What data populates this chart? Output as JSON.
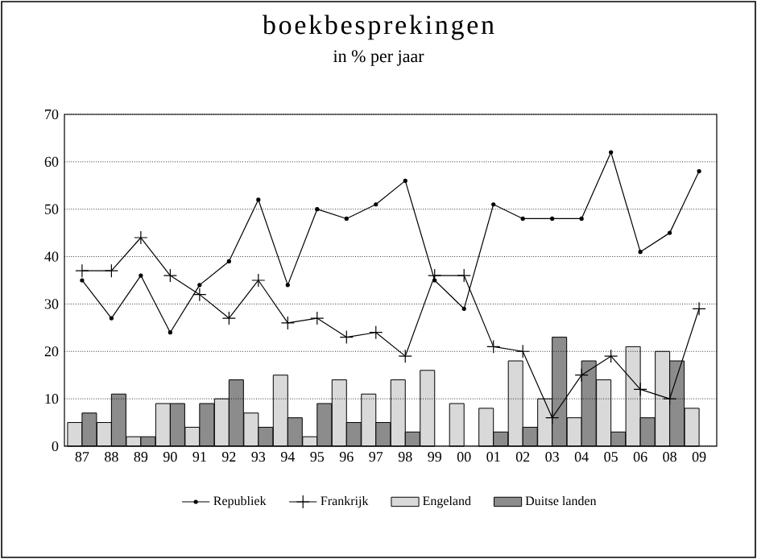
{
  "chart_data": {
    "type": "bar",
    "title": "boekbesprekingen",
    "subtitle": "in % per jaar",
    "categories": [
      "87",
      "88",
      "89",
      "90",
      "91",
      "92",
      "93",
      "94",
      "95",
      "96",
      "97",
      "98",
      "99",
      "00",
      "01",
      "02",
      "03",
      "04",
      "05",
      "06",
      "08",
      "09"
    ],
    "series": [
      {
        "name": "Republiek",
        "type": "line",
        "marker": "circle",
        "color": "#000000",
        "values": [
          35,
          27,
          36,
          24,
          34,
          39,
          52,
          34,
          50,
          48,
          51,
          56,
          35,
          29,
          51,
          48,
          48,
          48,
          62,
          41,
          45,
          58
        ]
      },
      {
        "name": "Frankrijk",
        "type": "line",
        "marker": "cross",
        "color": "#000000",
        "values": [
          37,
          37,
          44,
          36,
          32,
          27,
          35,
          26,
          27,
          23,
          24,
          19,
          36,
          36,
          21,
          20,
          6,
          15,
          19,
          12,
          10,
          29
        ]
      },
      {
        "name": "Engeland",
        "color": "#d9d9d9",
        "values": [
          5,
          5,
          2,
          9,
          4,
          10,
          7,
          15,
          2,
          14,
          11,
          14,
          16,
          9,
          8,
          18,
          10,
          6,
          14,
          21,
          20,
          8
        ]
      },
      {
        "name": "Duitse landen",
        "color": "#8c8c8c",
        "values": [
          7,
          11,
          2,
          9,
          9,
          14,
          4,
          6,
          9,
          5,
          5,
          3,
          null,
          null,
          3,
          4,
          23,
          18,
          3,
          6,
          18,
          null
        ]
      }
    ],
    "ylim": [
      0,
      70
    ],
    "yticks": [
      0,
      10,
      20,
      30,
      40,
      50,
      60,
      70
    ],
    "grid": "y",
    "legend": "bottom",
    "line_style": "solid"
  }
}
